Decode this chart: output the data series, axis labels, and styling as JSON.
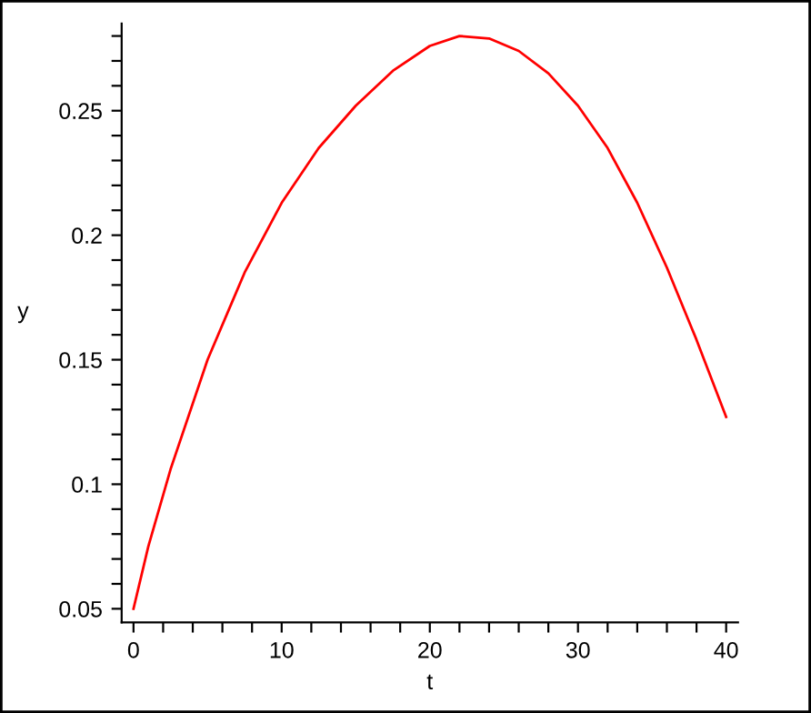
{
  "chart_data": {
    "type": "line",
    "xlabel": "t",
    "ylabel": "y",
    "x": [
      0,
      1,
      2.5,
      5,
      7.5,
      10,
      12.5,
      15,
      17.5,
      20,
      22,
      24,
      26,
      28,
      30,
      32,
      34,
      36,
      38,
      40
    ],
    "series": [
      {
        "color": "#ff0000",
        "values": [
          0.05,
          0.075,
          0.106,
          0.15,
          0.185,
          0.213,
          0.235,
          0.252,
          0.266,
          0.276,
          0.28,
          0.279,
          0.274,
          0.265,
          0.252,
          0.235,
          0.213,
          0.187,
          0.158,
          0.127
        ]
      }
    ],
    "xlim": [
      -0.8,
      40.8
    ],
    "ylim": [
      0.0445,
      0.285
    ],
    "xticks": [
      0,
      {
        "value": 2,
        "label": null
      },
      {
        "value": 4,
        "label": null
      },
      {
        "value": 6,
        "label": null
      },
      {
        "value": 8,
        "label": null
      },
      10,
      {
        "value": 12,
        "label": null
      },
      {
        "value": 14,
        "label": null
      },
      {
        "value": 16,
        "label": null
      },
      {
        "value": 18,
        "label": null
      },
      20,
      {
        "value": 22,
        "label": null
      },
      {
        "value": 24,
        "label": null
      },
      {
        "value": 26,
        "label": null
      },
      {
        "value": 28,
        "label": null
      },
      30,
      {
        "value": 32,
        "label": null
      },
      {
        "value": 34,
        "label": null
      },
      {
        "value": 36,
        "label": null
      },
      {
        "value": 38,
        "label": null
      },
      40
    ],
    "yticks": [
      0.05,
      {
        "value": 0.06,
        "label": null
      },
      {
        "value": 0.07,
        "label": null
      },
      {
        "value": 0.08,
        "label": null
      },
      {
        "value": 0.09,
        "label": null
      },
      0.1,
      {
        "value": 0.11,
        "label": null
      },
      {
        "value": 0.12,
        "label": null
      },
      {
        "value": 0.13,
        "label": null
      },
      {
        "value": 0.14,
        "label": null
      },
      0.15,
      {
        "value": 0.16,
        "label": null
      },
      {
        "value": 0.17,
        "label": null
      },
      {
        "value": 0.18,
        "label": null
      },
      {
        "value": 0.19,
        "label": null
      },
      0.2,
      {
        "value": 0.21,
        "label": null
      },
      {
        "value": 0.22,
        "label": null
      },
      {
        "value": 0.23,
        "label": null
      },
      {
        "value": 0.24,
        "label": null
      },
      0.25,
      {
        "value": 0.26,
        "label": null
      },
      {
        "value": 0.27,
        "label": null
      },
      {
        "value": 0.28,
        "label": null
      }
    ],
    "grid": false,
    "marker": "none",
    "line_style": "solid"
  }
}
